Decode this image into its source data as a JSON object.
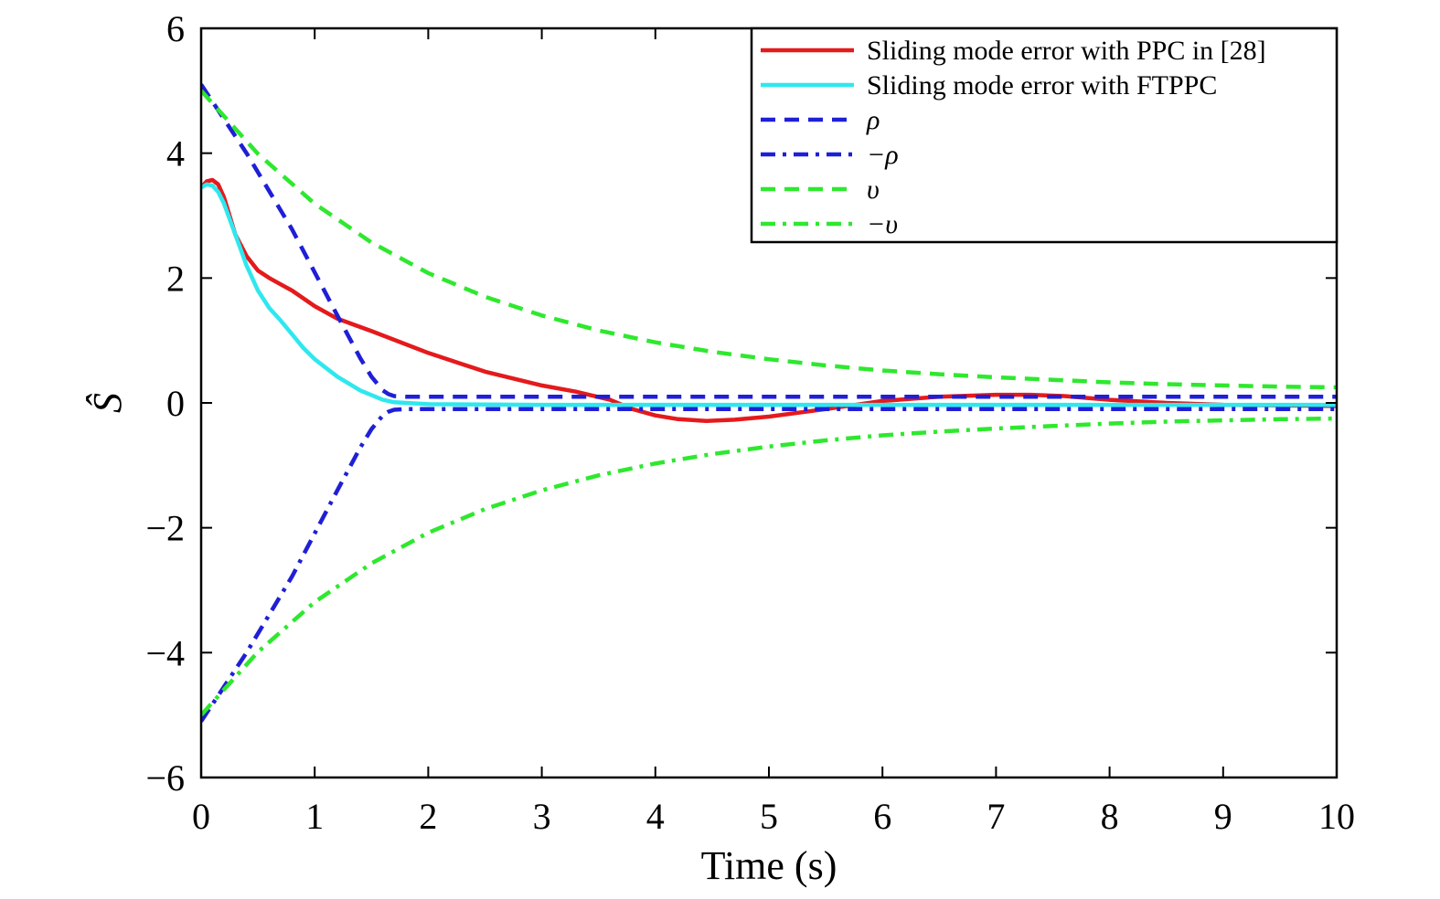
{
  "chart_data": {
    "type": "line",
    "title": "",
    "xlabel": "Time (s)",
    "ylabel": "Ŝ",
    "xlim": [
      0,
      10
    ],
    "ylim": [
      -6,
      6
    ],
    "xticks": [
      0,
      1,
      2,
      3,
      4,
      5,
      6,
      7,
      8,
      9,
      10
    ],
    "yticks": [
      -6,
      -4,
      -2,
      0,
      2,
      4,
      6
    ],
    "grid": false,
    "legend_position": "top-right",
    "series": [
      {
        "name": "Sliding mode error with PPC in [28]",
        "color": "#e41a1c",
        "style": "solid",
        "x": [
          0,
          0.05,
          0.1,
          0.15,
          0.2,
          0.25,
          0.3,
          0.4,
          0.5,
          0.6,
          0.7,
          0.8,
          1.0,
          1.2,
          1.5,
          2.0,
          2.5,
          3.0,
          3.3,
          3.6,
          3.8,
          4.0,
          4.2,
          4.45,
          4.7,
          5.0,
          5.5,
          6.0,
          6.5,
          7.0,
          7.3,
          7.6,
          8.0,
          8.5,
          9.0,
          9.5,
          10.0
        ],
        "y": [
          3.45,
          3.55,
          3.57,
          3.5,
          3.3,
          3.0,
          2.7,
          2.35,
          2.12,
          2.0,
          1.9,
          1.8,
          1.55,
          1.35,
          1.15,
          0.8,
          0.5,
          0.28,
          0.18,
          0.05,
          -0.1,
          -0.2,
          -0.26,
          -0.29,
          -0.27,
          -0.22,
          -0.1,
          0.03,
          0.1,
          0.13,
          0.13,
          0.11,
          0.05,
          0.0,
          -0.03,
          -0.04,
          -0.05
        ]
      },
      {
        "name": "Sliding mode error with FTPPC",
        "color": "#2ee8ee",
        "style": "solid",
        "x": [
          0,
          0.05,
          0.1,
          0.15,
          0.2,
          0.3,
          0.4,
          0.5,
          0.6,
          0.7,
          0.8,
          0.9,
          1.0,
          1.2,
          1.4,
          1.6,
          1.7,
          1.8,
          2.0,
          3.0,
          4.0,
          5.0,
          6.0,
          7.0,
          8.0,
          9.0,
          10.0
        ],
        "y": [
          3.45,
          3.5,
          3.48,
          3.38,
          3.2,
          2.7,
          2.2,
          1.8,
          1.52,
          1.32,
          1.1,
          0.88,
          0.7,
          0.42,
          0.2,
          0.05,
          0.01,
          0.0,
          -0.02,
          -0.03,
          -0.03,
          -0.03,
          -0.03,
          -0.03,
          -0.03,
          -0.03,
          -0.03
        ]
      },
      {
        "name": "ρ",
        "color": "#1f1fd6",
        "style": "dashed",
        "x": [
          0,
          0.4,
          0.8,
          1.2,
          1.4,
          1.5,
          1.6,
          1.65,
          1.7,
          1.8,
          2.0,
          4.0,
          6.0,
          8.0,
          10.0
        ],
        "y": [
          5.1,
          4.0,
          2.78,
          1.4,
          0.72,
          0.42,
          0.2,
          0.14,
          0.11,
          0.1,
          0.1,
          0.1,
          0.1,
          0.1,
          0.1
        ]
      },
      {
        "name": "−ρ",
        "color": "#1f1fd6",
        "style": "dashdot",
        "x": [
          0,
          0.4,
          0.8,
          1.2,
          1.4,
          1.5,
          1.6,
          1.65,
          1.7,
          1.8,
          2.0,
          4.0,
          6.0,
          8.0,
          10.0
        ],
        "y": [
          -5.1,
          -4.0,
          -2.78,
          -1.4,
          -0.72,
          -0.42,
          -0.2,
          -0.14,
          -0.11,
          -0.1,
          -0.1,
          -0.1,
          -0.1,
          -0.1,
          -0.1
        ]
      },
      {
        "name": "υ",
        "color": "#2ee82e",
        "style": "dashed",
        "x": [
          0,
          0.5,
          1,
          1.5,
          2,
          2.5,
          3,
          3.5,
          4,
          4.5,
          5,
          5.5,
          6,
          6.5,
          7,
          7.5,
          8,
          8.5,
          9,
          9.5,
          10
        ],
        "y": [
          5.0,
          3.99,
          3.19,
          2.57,
          2.08,
          1.7,
          1.4,
          1.16,
          0.97,
          0.82,
          0.7,
          0.6,
          0.52,
          0.46,
          0.41,
          0.37,
          0.33,
          0.3,
          0.28,
          0.26,
          0.25
        ]
      },
      {
        "name": "−υ",
        "color": "#2ee82e",
        "style": "dashdot",
        "x": [
          0,
          0.5,
          1,
          1.5,
          2,
          2.5,
          3,
          3.5,
          4,
          4.5,
          5,
          5.5,
          6,
          6.5,
          7,
          7.5,
          8,
          8.5,
          9,
          9.5,
          10
        ],
        "y": [
          -5.0,
          -3.99,
          -3.19,
          -2.57,
          -2.08,
          -1.7,
          -1.4,
          -1.16,
          -0.97,
          -0.82,
          -0.7,
          -0.6,
          -0.52,
          -0.46,
          -0.41,
          -0.37,
          -0.33,
          -0.3,
          -0.28,
          -0.26,
          -0.25
        ]
      }
    ]
  }
}
